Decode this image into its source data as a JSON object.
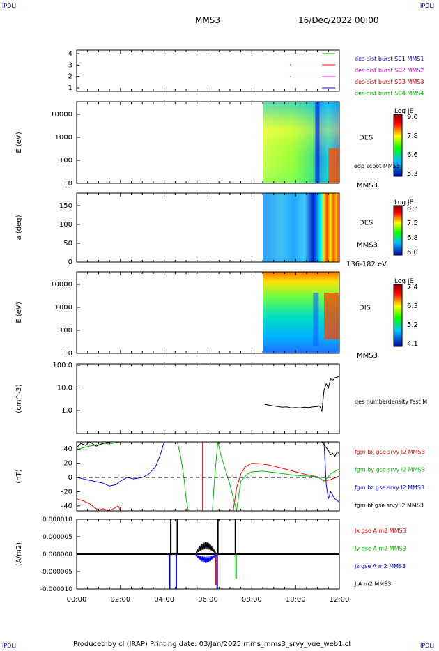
{
  "corners": {
    "tl": "IPDLI",
    "tr": "IPDLI",
    "bl": "IPDLI",
    "br": "IPDLI"
  },
  "header": {
    "spacecraft": "MMS3",
    "date": "16/Dec/2022 00:00"
  },
  "footer": {
    "text": "Produced by cl (IRAP)   Printing date: 03/Jan/2025   mms_mms3_srvy_vue_web1.cl"
  },
  "colors": {
    "sc1": "#0000c0",
    "sc2": "#c000c0",
    "sc3": "#c00000",
    "sc4": "#00b000"
  },
  "chart_data": [
    {
      "type": "line",
      "panel": "coverage",
      "yticks": [
        "1",
        "2",
        "3",
        "4"
      ],
      "legend": [
        {
          "text": "des dist burst SC1 MMS1",
          "color": "#0000c0"
        },
        {
          "text": "des dist burst SC2 MMS2",
          "color": "#c000c0"
        },
        {
          "text": "des dist burst SC3 MMS3",
          "color": "#c00000"
        },
        {
          "text": "des dist burst SC4 MMS4",
          "color": "#00b000"
        }
      ]
    },
    {
      "type": "heatmap",
      "panel": "des_energy",
      "ylabel": "E (eV)",
      "yticks": [
        "10",
        "100",
        "1000",
        "10000"
      ],
      "label": "DES",
      "sublabel": "edp scpot MMS3",
      "bottomlabel": "MMS3",
      "colorbar": {
        "title": "Log JE",
        "ticks": [
          "9.0",
          "7.8",
          "6.6",
          "5.3"
        ]
      }
    },
    {
      "type": "heatmap",
      "panel": "des_pitch",
      "ylabel": "a (deg)",
      "yticks": [
        "0",
        "50",
        "100",
        "150"
      ],
      "label": "DES",
      "sublabel": "MMS3",
      "bottomlabel": "136-182 eV",
      "colorbar": {
        "title": "Log JE",
        "ticks": [
          "8.3",
          "7.5",
          "6.8",
          "6.0"
        ]
      }
    },
    {
      "type": "heatmap",
      "panel": "dis_energy",
      "ylabel": "E (eV)",
      "yticks": [
        "10",
        "100",
        "1000",
        "10000"
      ],
      "label": "DIS",
      "bottomlabel": "MMS3",
      "colorbar": {
        "title": "Log JE",
        "ticks": [
          "7.4",
          "6.3",
          "5.2",
          "4.1"
        ]
      }
    },
    {
      "type": "line",
      "panel": "density",
      "ylabel": "(cm^-3)",
      "yticks": [
        "1.0",
        "10.0",
        "100.0"
      ],
      "scale": "log",
      "legend": [
        {
          "text": "des numberdensity fast M",
          "color": "#000000"
        }
      ],
      "series": [
        {
          "x": [
            8.5,
            8.8,
            9.0,
            9.2,
            9.4,
            9.6,
            9.8,
            10.0,
            10.2,
            10.4,
            10.6,
            10.8,
            11.0,
            11.1,
            11.2,
            11.3,
            11.4,
            11.5,
            11.6,
            11.7,
            11.8,
            11.9,
            12.0
          ],
          "y": [
            2.0,
            1.7,
            1.6,
            1.5,
            1.4,
            1.45,
            1.3,
            1.35,
            1.3,
            1.4,
            1.35,
            1.45,
            1.5,
            1.6,
            0.9,
            8.0,
            15,
            10,
            25,
            22,
            28,
            30,
            32
          ]
        }
      ]
    },
    {
      "type": "line",
      "panel": "b_field",
      "ylabel": "(nT)",
      "yticks": [
        "-40",
        "-20",
        "0",
        "20",
        "40"
      ],
      "ylim": [
        -47,
        50
      ],
      "legend": [
        {
          "text": "fgm bx gse srvy l2 MMS3",
          "color": "#ff0000"
        },
        {
          "text": "fgm by gse srvy l2 MMS3",
          "color": "#00c000"
        },
        {
          "text": "fgm bz gse srvy l2 MMS3",
          "color": "#0000ff"
        },
        {
          "text": "fgm bt gse srvy l2 MMS3",
          "color": "#000000"
        }
      ],
      "series": [
        {
          "name": "fgm bx gse srvy l2 MMS3",
          "color": "#ff0000",
          "x": [
            0.0,
            0.3,
            0.6,
            0.8,
            1.0,
            1.2,
            1.5,
            1.9,
            2.0,
            7.15,
            7.3,
            7.5,
            7.7,
            8.0,
            8.5,
            9.0,
            9.5,
            10.0,
            10.5,
            11.0,
            11.3,
            11.6,
            12.0
          ],
          "y": [
            -30,
            -33,
            -37,
            -42,
            -46,
            -44,
            -47,
            -40,
            -48,
            -48,
            -15,
            5,
            15,
            20,
            19,
            16,
            12,
            8,
            4,
            1,
            -5,
            -3,
            2
          ]
        },
        {
          "name": "fgm by gse srvy l2 MMS3",
          "color": "#00c000",
          "x": [
            0.0,
            0.3,
            0.6,
            1.0,
            1.3,
            1.5,
            1.8,
            2.0,
            4.6,
            4.75,
            4.9,
            5.0,
            5.1,
            6.2,
            6.3,
            6.45,
            6.6,
            7.0,
            7.3,
            7.5,
            7.8,
            8.0,
            8.5,
            9.0,
            9.5,
            10.0,
            10.5,
            11.0,
            11.3,
            11.6,
            12.0
          ],
          "y": [
            38,
            42,
            44,
            46,
            48,
            47,
            49,
            50,
            50,
            30,
            0,
            -30,
            -47,
            -47,
            0,
            50,
            30,
            -10,
            -47,
            -5,
            5,
            8,
            9,
            7,
            5,
            3,
            2,
            1,
            -5,
            5,
            12
          ]
        },
        {
          "name": "fgm bz gse srvy l2 MMS3",
          "color": "#0000ff",
          "x": [
            0.0,
            0.3,
            0.6,
            0.9,
            1.2,
            1.5,
            1.8,
            2.0,
            2.3,
            2.6,
            3.0,
            3.3,
            3.6,
            3.8,
            4.0,
            11.3,
            11.4,
            11.5,
            11.6,
            11.7,
            11.8,
            12.0
          ],
          "y": [
            0,
            -2,
            -4,
            -6,
            -8,
            -12,
            -10,
            -5,
            0,
            -2,
            0,
            5,
            15,
            30,
            50,
            50,
            -10,
            -30,
            -20,
            -25,
            -30,
            -35
          ]
        },
        {
          "name": "fgm bt gse srvy l2 MMS3",
          "color": "#000000",
          "x": [
            0.0,
            0.2,
            0.4,
            0.6,
            0.9,
            1.2,
            1.6,
            2.0,
            11.2,
            11.35,
            11.5,
            11.6,
            11.7,
            11.8,
            11.9,
            12.0
          ],
          "y": [
            42,
            48,
            45,
            50,
            44,
            48,
            50,
            50,
            50,
            44,
            38,
            32,
            34,
            30,
            36,
            33
          ]
        }
      ]
    },
    {
      "type": "line",
      "panel": "current",
      "ylabel": "(A/m2)",
      "yticks": [
        "-0.000010",
        "-0.000005",
        "0.000000",
        "0.000005",
        "0.000010"
      ],
      "ylim": [
        -1e-05,
        1e-05
      ],
      "xticks": [
        "00:00",
        "02:00",
        "04:00",
        "06:00",
        "08:00",
        "10:00",
        "12:00"
      ],
      "legend": [
        {
          "text": "Jx gse A m2 MMS3",
          "color": "#ff0000"
        },
        {
          "text": "Jy gse A m2 MMS3",
          "color": "#00c000"
        },
        {
          "text": "Jz gse A m2 MMS3",
          "color": "#0000ff"
        },
        {
          "text": "J A m2 MMS3",
          "color": "#000000"
        }
      ]
    }
  ]
}
